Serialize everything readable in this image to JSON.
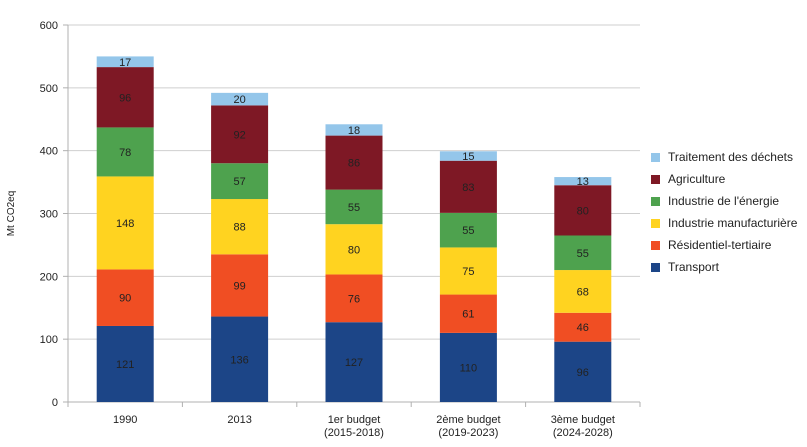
{
  "chart_data": {
    "type": "bar",
    "stacked": true,
    "categories": [
      "1990",
      "2013",
      "1er budget\n(2015-2018)",
      "2ème budget\n(2019-2023)",
      "3ème budget\n(2024-2028)"
    ],
    "ylabel": "Mt CO2eq",
    "ylim": [
      0,
      600
    ],
    "yticks": [
      0,
      100,
      200,
      300,
      400,
      500,
      600
    ],
    "grid": true,
    "legend_position": "right",
    "series": [
      {
        "name": "Transport",
        "color": "#1c4587",
        "values": [
          121,
          136,
          127,
          110,
          96
        ]
      },
      {
        "name": "Résidentiel-tertiaire",
        "color": "#f04e23",
        "values": [
          90,
          99,
          76,
          61,
          46
        ]
      },
      {
        "name": "Industrie manufacturière",
        "color": "#ffd320",
        "values": [
          148,
          88,
          80,
          75,
          68
        ]
      },
      {
        "name": "Industrie de l'énergie",
        "color": "#4ea24e",
        "values": [
          78,
          57,
          55,
          55,
          55
        ]
      },
      {
        "name": "Agriculture",
        "color": "#7e1825",
        "values": [
          96,
          92,
          86,
          83,
          80
        ]
      },
      {
        "name": "Traitement des déchets",
        "color": "#94c6ea",
        "values": [
          17,
          20,
          18,
          15,
          13
        ]
      }
    ]
  }
}
